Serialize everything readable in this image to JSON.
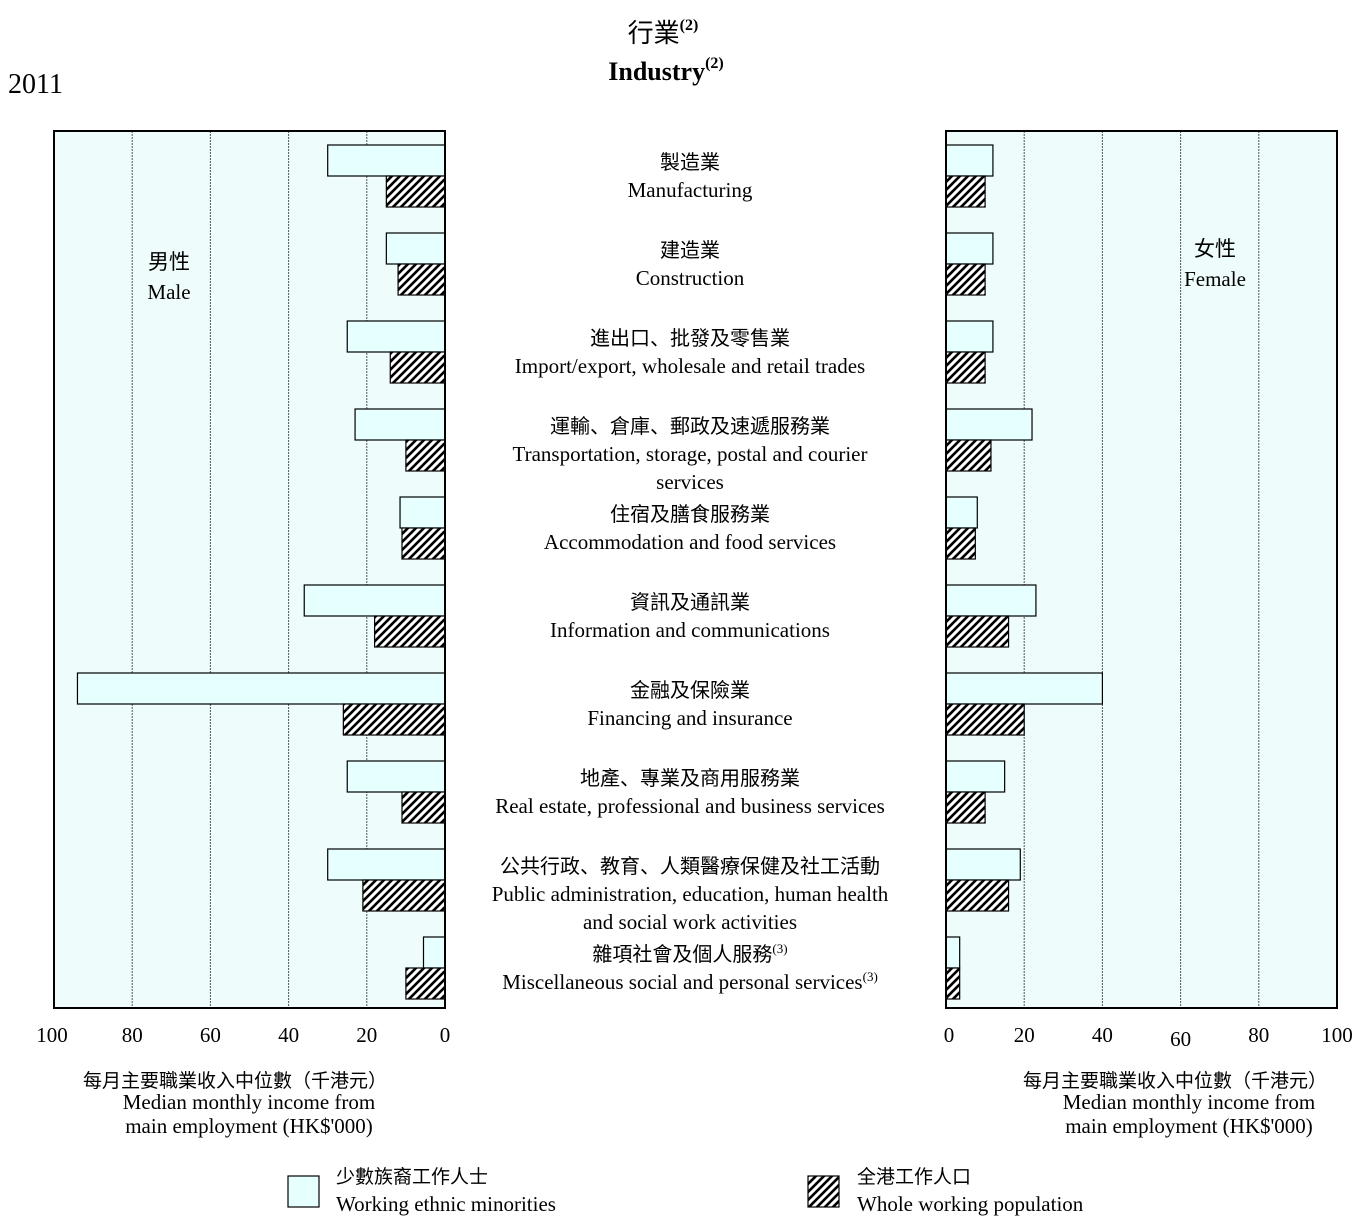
{
  "page": {
    "year": "2011",
    "title_zh": "行業",
    "title_en": "Industry",
    "title_note": "(2)"
  },
  "chart_data": {
    "type": "bar",
    "orientation": "horizontal-butterfly",
    "categories": [
      {
        "zh": "製造業",
        "en_lines": [
          "Manufacturing"
        ],
        "note": ""
      },
      {
        "zh": "建造業",
        "en_lines": [
          "Construction"
        ],
        "note": ""
      },
      {
        "zh": "進出口、批發及零售業",
        "en_lines": [
          "Import/export, wholesale and retail trades"
        ],
        "note": ""
      },
      {
        "zh": "運輸、倉庫、郵政及速遞服務業",
        "en_lines": [
          "Transportation, storage, postal and courier",
          "services"
        ],
        "note": ""
      },
      {
        "zh": "住宿及膳食服務業",
        "en_lines": [
          "Accommodation and food services"
        ],
        "note": ""
      },
      {
        "zh": "資訊及通訊業",
        "en_lines": [
          "Information and communications"
        ],
        "note": ""
      },
      {
        "zh": "金融及保險業",
        "en_lines": [
          "Financing and insurance"
        ],
        "note": ""
      },
      {
        "zh": "地產、專業及商用服務業",
        "en_lines": [
          "Real estate, professional and business services"
        ],
        "note": ""
      },
      {
        "zh": "公共行政、教育、人類醫療保健及社工活動",
        "en_lines": [
          "Public administration, education, human health",
          "and social work activities"
        ],
        "note": ""
      },
      {
        "zh": "雜項社會及個人服務",
        "en_lines": [
          "Miscellaneous social and personal services"
        ],
        "note": "(3)"
      }
    ],
    "panels": [
      {
        "label_zh": "男性",
        "label_en": "Male",
        "xlim": [
          100,
          0
        ],
        "xticks": [
          "100",
          "80",
          "60",
          "40",
          "20",
          "0"
        ],
        "series": [
          {
            "key": "minorities",
            "values": [
              30,
              15,
              25,
              23,
              11.5,
              36,
              94,
              25,
              30,
              5.5
            ]
          },
          {
            "key": "whole",
            "values": [
              15,
              12,
              14,
              10,
              11,
              18,
              26,
              11,
              21,
              10
            ]
          }
        ]
      },
      {
        "label_zh": "女性",
        "label_en": "Female",
        "xlim": [
          0,
          100
        ],
        "xticks": [
          "0",
          "20",
          "40",
          "60",
          "80",
          "100"
        ],
        "series": [
          {
            "key": "minorities",
            "values": [
              12,
              12,
              12,
              22,
              8,
              23,
              40,
              15,
              19,
              3.5
            ]
          },
          {
            "key": "whole",
            "values": [
              10,
              10,
              10,
              11.5,
              7.5,
              16,
              20,
              10,
              16,
              3.5
            ]
          }
        ]
      }
    ],
    "xlabel_zh": "每月主要職業收入中位數（千港元）",
    "xlabel_en_lines": [
      "Median monthly income from",
      "main employment (HK$'000)"
    ],
    "legend": [
      {
        "key": "minorities",
        "zh": "少數族裔工作人士",
        "en": "Working ethnic minorities"
      },
      {
        "key": "whole",
        "zh": "全港工作人口",
        "en": "Whole working population"
      }
    ],
    "colors": {
      "minorities": "#e6ffff",
      "panel_bg": "#eefcfc",
      "whole_stroke": "#000000"
    },
    "grid": true
  }
}
